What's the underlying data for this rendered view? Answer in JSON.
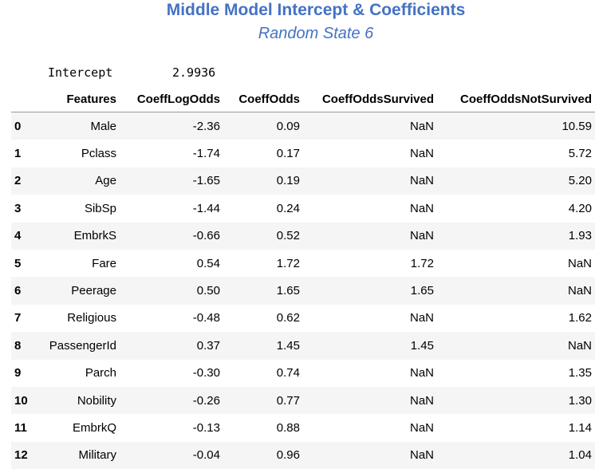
{
  "title": "Middle Model Intercept & Coefficients",
  "subtitle": "Random State 6",
  "intercept": {
    "label": "Intercept",
    "value": "2.9936"
  },
  "table": {
    "columns": [
      "",
      "Features",
      "CoeffLogOdds",
      "CoeffOdds",
      "CoeffOddsSurvived",
      "CoeffOddsNotSurvived"
    ],
    "rows": [
      {
        "index": "0",
        "feature": "Male",
        "log_odds": "-2.36",
        "odds": "0.09",
        "survived": "NaN",
        "not_survived": "10.59"
      },
      {
        "index": "1",
        "feature": "Pclass",
        "log_odds": "-1.74",
        "odds": "0.17",
        "survived": "NaN",
        "not_survived": "5.72"
      },
      {
        "index": "2",
        "feature": "Age",
        "log_odds": "-1.65",
        "odds": "0.19",
        "survived": "NaN",
        "not_survived": "5.20"
      },
      {
        "index": "3",
        "feature": "SibSp",
        "log_odds": "-1.44",
        "odds": "0.24",
        "survived": "NaN",
        "not_survived": "4.20"
      },
      {
        "index": "4",
        "feature": "EmbrkS",
        "log_odds": "-0.66",
        "odds": "0.52",
        "survived": "NaN",
        "not_survived": "1.93"
      },
      {
        "index": "5",
        "feature": "Fare",
        "log_odds": "0.54",
        "odds": "1.72",
        "survived": "1.72",
        "not_survived": "NaN"
      },
      {
        "index": "6",
        "feature": "Peerage",
        "log_odds": "0.50",
        "odds": "1.65",
        "survived": "1.65",
        "not_survived": "NaN"
      },
      {
        "index": "7",
        "feature": "Religious",
        "log_odds": "-0.48",
        "odds": "0.62",
        "survived": "NaN",
        "not_survived": "1.62"
      },
      {
        "index": "8",
        "feature": "PassengerId",
        "log_odds": "0.37",
        "odds": "1.45",
        "survived": "1.45",
        "not_survived": "NaN"
      },
      {
        "index": "9",
        "feature": "Parch",
        "log_odds": "-0.30",
        "odds": "0.74",
        "survived": "NaN",
        "not_survived": "1.35"
      },
      {
        "index": "10",
        "feature": "Nobility",
        "log_odds": "-0.26",
        "odds": "0.77",
        "survived": "NaN",
        "not_survived": "1.30"
      },
      {
        "index": "11",
        "feature": "EmbrkQ",
        "log_odds": "-0.13",
        "odds": "0.88",
        "survived": "NaN",
        "not_survived": "1.14"
      },
      {
        "index": "12",
        "feature": "Military",
        "log_odds": "-0.04",
        "odds": "0.96",
        "survived": "NaN",
        "not_survived": "1.04"
      }
    ]
  }
}
